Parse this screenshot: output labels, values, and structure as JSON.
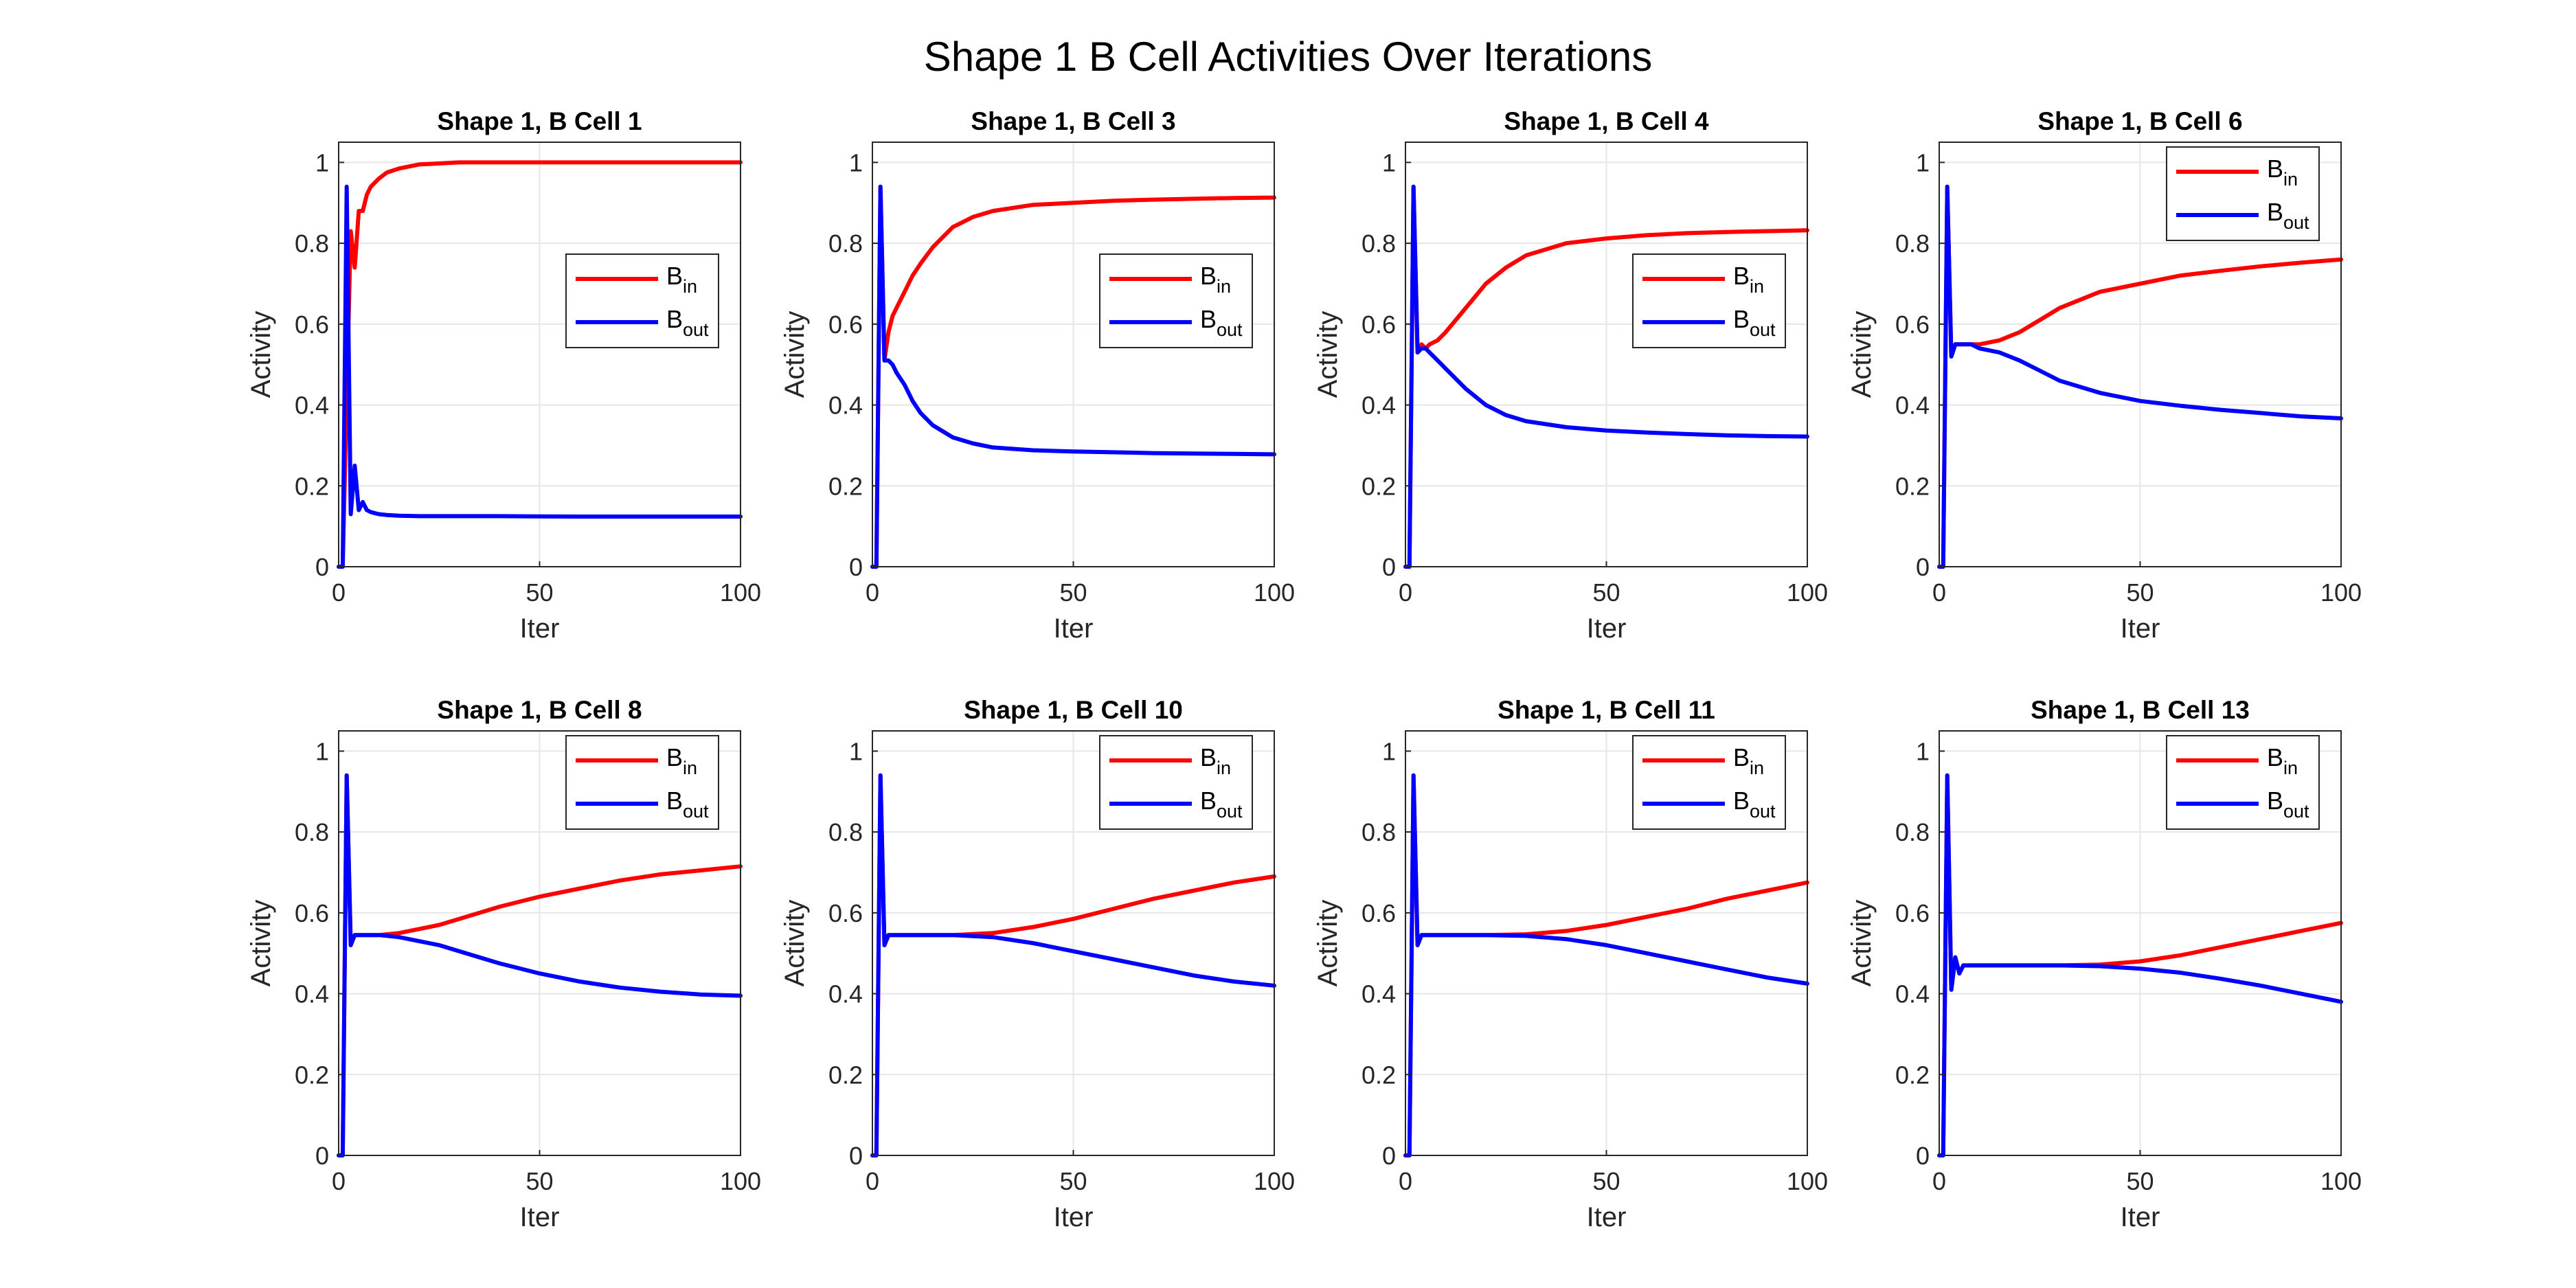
{
  "figure_title": "Shape 1 B Cell Activities Over Iterations",
  "colors": {
    "B_in": "#ff0000",
    "B_out": "#0000ff",
    "grid": "#e6e6e6",
    "axes": "#262626"
  },
  "chart_data": [
    {
      "type": "line",
      "title": "Shape 1, B Cell 1",
      "xlabel": "Iter",
      "ylabel": "Activity",
      "xlim": [
        0,
        100
      ],
      "ylim": [
        0,
        1.05
      ],
      "xticks": [
        0,
        50,
        100
      ],
      "yticks": [
        0,
        0.2,
        0.4,
        0.6,
        0.8,
        1
      ],
      "grid": true,
      "legend_position": "right-middle",
      "series": [
        {
          "name": "B_in",
          "x": [
            0,
            1,
            2,
            3,
            4,
            5,
            6,
            7,
            8,
            10,
            12,
            15,
            20,
            30,
            40,
            60,
            80,
            100
          ],
          "y": [
            0,
            0,
            0.42,
            0.83,
            0.74,
            0.88,
            0.88,
            0.92,
            0.94,
            0.96,
            0.975,
            0.985,
            0.995,
            1.0,
            1.0,
            1.0,
            1.0,
            1.0
          ]
        },
        {
          "name": "B_out",
          "x": [
            0,
            1,
            2,
            3,
            4,
            5,
            6,
            7,
            8,
            10,
            12,
            15,
            20,
            30,
            40,
            60,
            80,
            100
          ],
          "y": [
            0,
            0,
            0.94,
            0.13,
            0.25,
            0.14,
            0.16,
            0.14,
            0.135,
            0.13,
            0.128,
            0.126,
            0.125,
            0.125,
            0.125,
            0.124,
            0.124,
            0.124
          ]
        }
      ]
    },
    {
      "type": "line",
      "title": "Shape 1, B Cell 3",
      "xlabel": "Iter",
      "ylabel": "Activity",
      "xlim": [
        0,
        100
      ],
      "ylim": [
        0,
        1.05
      ],
      "xticks": [
        0,
        50,
        100
      ],
      "yticks": [
        0,
        0.2,
        0.4,
        0.6,
        0.8,
        1
      ],
      "grid": true,
      "legend_position": "right-middle",
      "series": [
        {
          "name": "B_in",
          "x": [
            0,
            1,
            2,
            3,
            4,
            5,
            6,
            8,
            10,
            12,
            15,
            20,
            25,
            30,
            40,
            50,
            60,
            70,
            80,
            90,
            100
          ],
          "y": [
            0,
            0,
            0.94,
            0.51,
            0.58,
            0.62,
            0.64,
            0.68,
            0.72,
            0.75,
            0.79,
            0.84,
            0.865,
            0.88,
            0.895,
            0.9,
            0.905,
            0.908,
            0.91,
            0.912,
            0.913
          ]
        },
        {
          "name": "B_out",
          "x": [
            0,
            1,
            2,
            3,
            4,
            5,
            6,
            8,
            10,
            12,
            15,
            20,
            25,
            30,
            40,
            50,
            60,
            70,
            80,
            90,
            100
          ],
          "y": [
            0,
            0,
            0.94,
            0.51,
            0.51,
            0.5,
            0.48,
            0.45,
            0.41,
            0.38,
            0.35,
            0.32,
            0.305,
            0.295,
            0.288,
            0.285,
            0.283,
            0.281,
            0.28,
            0.279,
            0.278
          ]
        }
      ]
    },
    {
      "type": "line",
      "title": "Shape 1, B Cell 4",
      "xlabel": "Iter",
      "ylabel": "Activity",
      "xlim": [
        0,
        100
      ],
      "ylim": [
        0,
        1.05
      ],
      "xticks": [
        0,
        50,
        100
      ],
      "yticks": [
        0,
        0.2,
        0.4,
        0.6,
        0.8,
        1
      ],
      "grid": true,
      "legend_position": "right-middle",
      "series": [
        {
          "name": "B_in",
          "x": [
            0,
            1,
            2,
            3,
            4,
            5,
            6,
            8,
            10,
            15,
            20,
            25,
            30,
            40,
            50,
            60,
            70,
            80,
            90,
            100
          ],
          "y": [
            0,
            0,
            0.94,
            0.53,
            0.55,
            0.54,
            0.55,
            0.56,
            0.58,
            0.64,
            0.7,
            0.74,
            0.77,
            0.8,
            0.812,
            0.82,
            0.825,
            0.828,
            0.83,
            0.832
          ]
        },
        {
          "name": "B_out",
          "x": [
            0,
            1,
            2,
            3,
            4,
            5,
            6,
            8,
            10,
            15,
            20,
            25,
            30,
            40,
            50,
            60,
            70,
            80,
            90,
            100
          ],
          "y": [
            0,
            0,
            0.94,
            0.53,
            0.54,
            0.54,
            0.53,
            0.51,
            0.49,
            0.44,
            0.4,
            0.375,
            0.36,
            0.345,
            0.337,
            0.332,
            0.328,
            0.325,
            0.323,
            0.322
          ]
        }
      ]
    },
    {
      "type": "line",
      "title": "Shape 1, B Cell 6",
      "xlabel": "Iter",
      "ylabel": "Activity",
      "xlim": [
        0,
        100
      ],
      "ylim": [
        0,
        1.05
      ],
      "xticks": [
        0,
        50,
        100
      ],
      "yticks": [
        0,
        0.2,
        0.4,
        0.6,
        0.8,
        1
      ],
      "grid": true,
      "legend_position": "top-right",
      "series": [
        {
          "name": "B_in",
          "x": [
            0,
            1,
            2,
            3,
            4,
            5,
            6,
            8,
            10,
            15,
            20,
            25,
            30,
            40,
            50,
            60,
            70,
            80,
            90,
            100
          ],
          "y": [
            0,
            0,
            0.94,
            0.52,
            0.55,
            0.55,
            0.55,
            0.55,
            0.55,
            0.56,
            0.58,
            0.61,
            0.64,
            0.68,
            0.7,
            0.72,
            0.732,
            0.743,
            0.752,
            0.76
          ]
        },
        {
          "name": "B_out",
          "x": [
            0,
            1,
            2,
            3,
            4,
            5,
            6,
            8,
            10,
            15,
            20,
            25,
            30,
            40,
            50,
            60,
            70,
            80,
            90,
            100
          ],
          "y": [
            0,
            0,
            0.94,
            0.52,
            0.55,
            0.55,
            0.55,
            0.55,
            0.54,
            0.53,
            0.51,
            0.485,
            0.46,
            0.43,
            0.41,
            0.398,
            0.388,
            0.38,
            0.372,
            0.367
          ]
        }
      ]
    },
    {
      "type": "line",
      "title": "Shape 1, B Cell 8",
      "xlabel": "Iter",
      "ylabel": "Activity",
      "xlim": [
        0,
        100
      ],
      "ylim": [
        0,
        1.05
      ],
      "xticks": [
        0,
        50,
        100
      ],
      "yticks": [
        0,
        0.2,
        0.4,
        0.6,
        0.8,
        1
      ],
      "grid": true,
      "legend_position": "top-right",
      "series": [
        {
          "name": "B_in",
          "x": [
            0,
            1,
            2,
            3,
            4,
            5,
            6,
            10,
            15,
            20,
            25,
            30,
            40,
            50,
            60,
            70,
            80,
            90,
            100
          ],
          "y": [
            0,
            0,
            0.94,
            0.52,
            0.545,
            0.545,
            0.545,
            0.545,
            0.55,
            0.56,
            0.57,
            0.585,
            0.615,
            0.64,
            0.66,
            0.68,
            0.695,
            0.705,
            0.715
          ]
        },
        {
          "name": "B_out",
          "x": [
            0,
            1,
            2,
            3,
            4,
            5,
            6,
            10,
            15,
            20,
            25,
            30,
            40,
            50,
            60,
            70,
            80,
            90,
            100
          ],
          "y": [
            0,
            0,
            0.94,
            0.52,
            0.545,
            0.545,
            0.545,
            0.545,
            0.54,
            0.53,
            0.52,
            0.505,
            0.475,
            0.45,
            0.43,
            0.415,
            0.405,
            0.398,
            0.395
          ]
        }
      ]
    },
    {
      "type": "line",
      "title": "Shape 1, B Cell 10",
      "xlabel": "Iter",
      "ylabel": "Activity",
      "xlim": [
        0,
        100
      ],
      "ylim": [
        0,
        1.05
      ],
      "xticks": [
        0,
        50,
        100
      ],
      "yticks": [
        0,
        0.2,
        0.4,
        0.6,
        0.8,
        1
      ],
      "grid": true,
      "legend_position": "top-right",
      "series": [
        {
          "name": "B_in",
          "x": [
            0,
            1,
            2,
            3,
            4,
            5,
            6,
            10,
            20,
            30,
            40,
            50,
            60,
            70,
            80,
            90,
            100
          ],
          "y": [
            0,
            0,
            0.94,
            0.52,
            0.545,
            0.545,
            0.545,
            0.545,
            0.545,
            0.55,
            0.565,
            0.585,
            0.61,
            0.635,
            0.655,
            0.675,
            0.69
          ]
        },
        {
          "name": "B_out",
          "x": [
            0,
            1,
            2,
            3,
            4,
            5,
            6,
            10,
            20,
            30,
            40,
            50,
            60,
            70,
            80,
            90,
            100
          ],
          "y": [
            0,
            0,
            0.94,
            0.52,
            0.545,
            0.545,
            0.545,
            0.545,
            0.545,
            0.54,
            0.525,
            0.505,
            0.485,
            0.465,
            0.445,
            0.43,
            0.42
          ]
        }
      ]
    },
    {
      "type": "line",
      "title": "Shape 1, B Cell 11",
      "xlabel": "Iter",
      "ylabel": "Activity",
      "xlim": [
        0,
        100
      ],
      "ylim": [
        0,
        1.05
      ],
      "xticks": [
        0,
        50,
        100
      ],
      "yticks": [
        0,
        0.2,
        0.4,
        0.6,
        0.8,
        1
      ],
      "grid": true,
      "legend_position": "top-right",
      "series": [
        {
          "name": "B_in",
          "x": [
            0,
            1,
            2,
            3,
            4,
            5,
            6,
            10,
            20,
            30,
            40,
            50,
            60,
            70,
            80,
            90,
            100
          ],
          "y": [
            0,
            0,
            0.94,
            0.52,
            0.545,
            0.545,
            0.545,
            0.545,
            0.545,
            0.547,
            0.555,
            0.57,
            0.59,
            0.61,
            0.635,
            0.655,
            0.675
          ]
        },
        {
          "name": "B_out",
          "x": [
            0,
            1,
            2,
            3,
            4,
            5,
            6,
            10,
            20,
            30,
            40,
            50,
            60,
            70,
            80,
            90,
            100
          ],
          "y": [
            0,
            0,
            0.94,
            0.52,
            0.545,
            0.545,
            0.545,
            0.545,
            0.545,
            0.543,
            0.535,
            0.52,
            0.5,
            0.48,
            0.46,
            0.44,
            0.425
          ]
        }
      ]
    },
    {
      "type": "line",
      "title": "Shape 1, B Cell 13",
      "xlabel": "Iter",
      "ylabel": "Activity",
      "xlim": [
        0,
        100
      ],
      "ylim": [
        0,
        1.05
      ],
      "xticks": [
        0,
        50,
        100
      ],
      "yticks": [
        0,
        0.2,
        0.4,
        0.6,
        0.8,
        1
      ],
      "grid": true,
      "legend_position": "top-right",
      "series": [
        {
          "name": "B_in",
          "x": [
            0,
            1,
            2,
            3,
            4,
            5,
            6,
            8,
            10,
            20,
            30,
            40,
            50,
            60,
            70,
            80,
            90,
            100
          ],
          "y": [
            0,
            0,
            0.94,
            0.41,
            0.49,
            0.45,
            0.47,
            0.47,
            0.47,
            0.47,
            0.47,
            0.472,
            0.48,
            0.495,
            0.515,
            0.535,
            0.555,
            0.575
          ]
        },
        {
          "name": "B_out",
          "x": [
            0,
            1,
            2,
            3,
            4,
            5,
            6,
            8,
            10,
            20,
            30,
            40,
            50,
            60,
            70,
            80,
            90,
            100
          ],
          "y": [
            0,
            0,
            0.94,
            0.41,
            0.49,
            0.45,
            0.47,
            0.47,
            0.47,
            0.47,
            0.47,
            0.468,
            0.462,
            0.452,
            0.437,
            0.42,
            0.4,
            0.38
          ]
        }
      ]
    }
  ]
}
